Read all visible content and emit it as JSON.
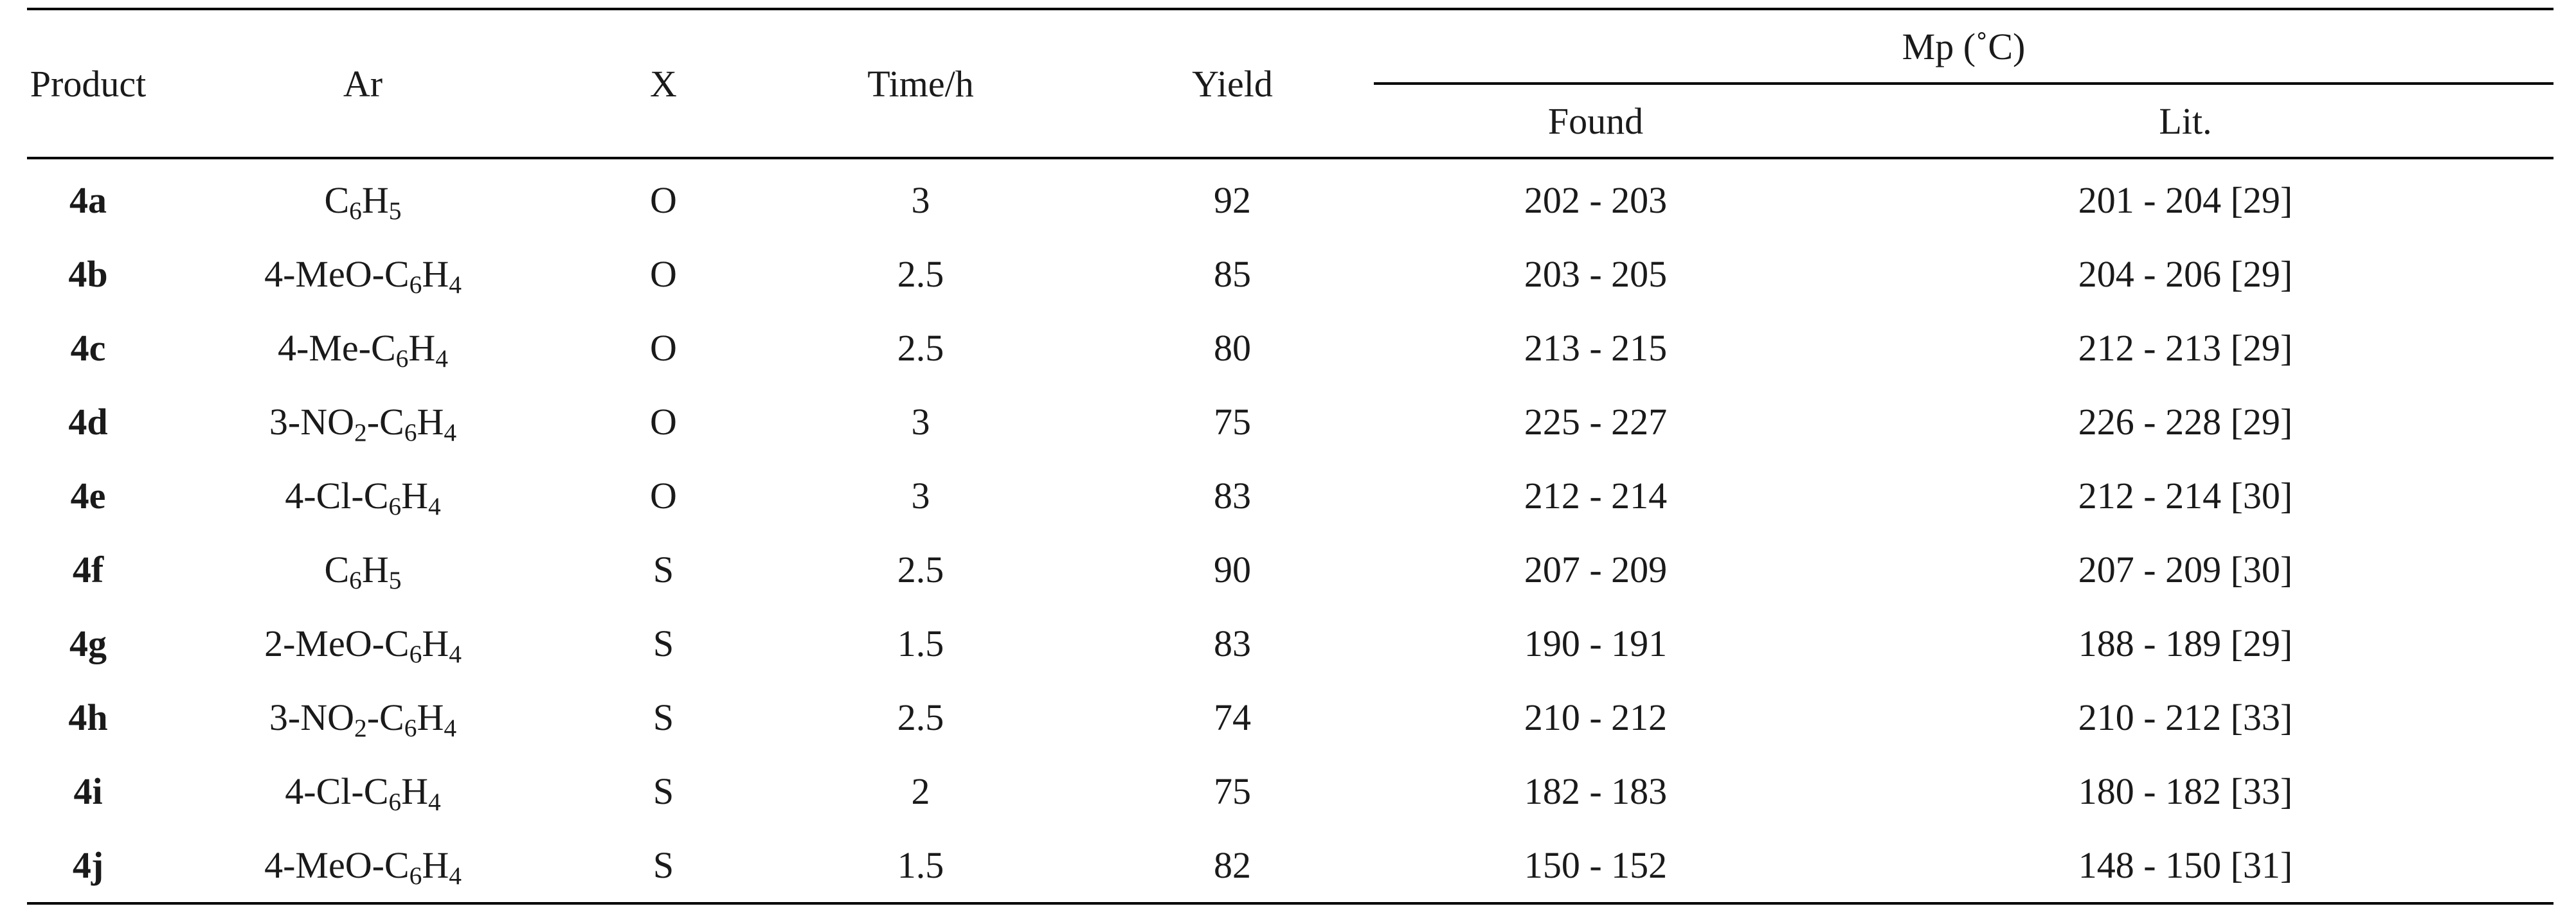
{
  "table": {
    "headers": {
      "product": "Product",
      "ar": "Ar",
      "x": "X",
      "time": "Time/h",
      "yield": "Yield",
      "mp": "Mp (˚C)",
      "found": "Found",
      "lit": "Lit."
    },
    "rows": [
      {
        "product": "4a",
        "ar_parts": [
          "C",
          "6",
          "H",
          "5",
          ""
        ],
        "x": "O",
        "time": "3",
        "yield": "92",
        "found": "202 - 203",
        "lit": "201 - 204 [29]"
      },
      {
        "product": "4b",
        "ar_parts": [
          "4-MeO-C",
          "6",
          "H",
          "4",
          ""
        ],
        "x": "O",
        "time": "2.5",
        "yield": "85",
        "found": "203 - 205",
        "lit": "204 - 206 [29]"
      },
      {
        "product": "4c",
        "ar_parts": [
          "4-Me-C",
          "6",
          "H",
          "4",
          ""
        ],
        "x": "O",
        "time": "2.5",
        "yield": "80",
        "found": "213 - 215",
        "lit": "212 - 213 [29]"
      },
      {
        "product": "4d",
        "ar_parts": [
          "3-NO",
          "2",
          "-C",
          "6",
          "H",
          "4",
          ""
        ],
        "x": "O",
        "time": "3",
        "yield": "75",
        "found": "225 - 227",
        "lit": "226 - 228 [29]"
      },
      {
        "product": "4e",
        "ar_parts": [
          "4-Cl-C",
          "6",
          "H",
          "4",
          ""
        ],
        "x": "O",
        "time": "3",
        "yield": "83",
        "found": "212 - 214",
        "lit": "212 - 214 [30]"
      },
      {
        "product": "4f",
        "ar_parts": [
          "C",
          "6",
          "H",
          "5",
          ""
        ],
        "x": "S",
        "time": "2.5",
        "yield": "90",
        "found": "207 - 209",
        "lit": "207 - 209 [30]"
      },
      {
        "product": "4g",
        "ar_parts": [
          "2-MeO-C",
          "6",
          "H",
          "4",
          ""
        ],
        "x": "S",
        "time": "1.5",
        "yield": "83",
        "found": "190 - 191",
        "lit": "188 - 189 [29]"
      },
      {
        "product": "4h",
        "ar_parts": [
          "3-NO",
          "2",
          "-C",
          "6",
          "H",
          "4",
          ""
        ],
        "x": "S",
        "time": "2.5",
        "yield": "74",
        "found": "210 - 212",
        "lit": "210 - 212 [33]"
      },
      {
        "product": "4i",
        "ar_parts": [
          "4-Cl-C",
          "6",
          "H",
          "4",
          ""
        ],
        "x": "S",
        "time": "2",
        "yield": "75",
        "found": "182 - 183",
        "lit": "180 - 182 [33]"
      },
      {
        "product": "4j",
        "ar_parts": [
          "4-MeO-C",
          "6",
          "H",
          "4",
          ""
        ],
        "x": "S",
        "time": "1.5",
        "yield": "82",
        "found": "150 - 152",
        "lit": "148 - 150 [31]"
      }
    ]
  }
}
